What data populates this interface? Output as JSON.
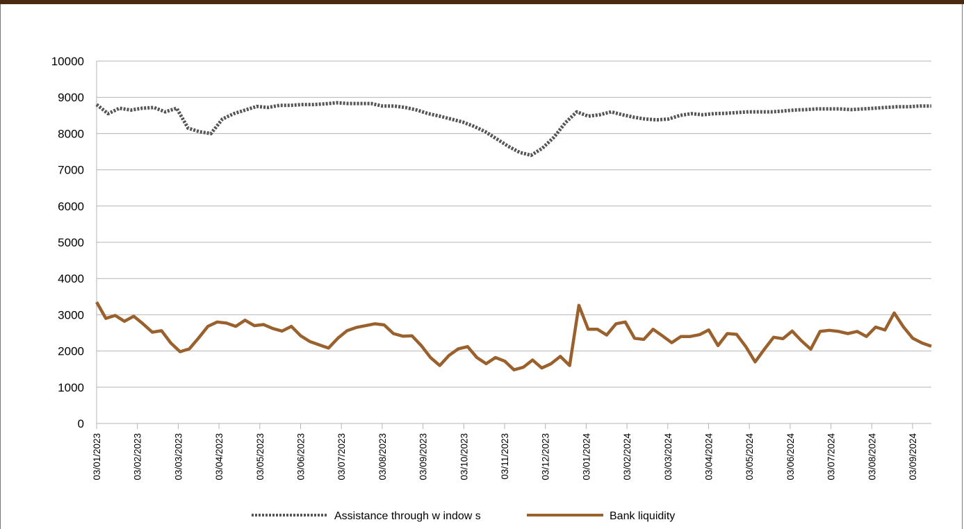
{
  "chart_data": {
    "type": "line",
    "title": "",
    "xlabel": "",
    "ylabel": "",
    "ylim": [
      0,
      10000
    ],
    "yticks": [
      0,
      1000,
      2000,
      3000,
      4000,
      5000,
      6000,
      7000,
      8000,
      9000,
      10000
    ],
    "x_tick_labels": [
      "03/01/2023",
      "03/02/2023",
      "03/03/2023",
      "03/04/2023",
      "03/05/2023",
      "03/06/2023",
      "03/07/2023",
      "03/08/2023",
      "03/09/2023",
      "03/10/2023",
      "03/11/2023",
      "03/12/2023",
      "03/01/2024",
      "03/02/2024",
      "03/03/2024",
      "03/04/2024",
      "03/05/2024",
      "03/06/2024",
      "03/07/2024",
      "03/08/2024",
      "03/09/2024"
    ],
    "x_period_weeks": 90,
    "grid": true,
    "legend_position": "bottom",
    "series": [
      {
        "name": "Assistance through w indow s",
        "style": "dotted",
        "color": "#555555",
        "values": [
          8800,
          8550,
          8700,
          8650,
          8700,
          8720,
          8600,
          8700,
          8150,
          8050,
          8000,
          8400,
          8550,
          8650,
          8750,
          8720,
          8780,
          8780,
          8800,
          8800,
          8820,
          8850,
          8830,
          8830,
          8830,
          8760,
          8760,
          8720,
          8650,
          8550,
          8480,
          8400,
          8320,
          8200,
          8050,
          7850,
          7650,
          7480,
          7400,
          7600,
          7900,
          8300,
          8600,
          8480,
          8520,
          8600,
          8520,
          8450,
          8400,
          8380,
          8400,
          8500,
          8550,
          8520,
          8550,
          8560,
          8580,
          8600,
          8600,
          8600,
          8620,
          8650,
          8660,
          8680,
          8680,
          8680,
          8660,
          8680,
          8700,
          8720,
          8740,
          8740,
          8760,
          8760
        ],
        "color_hex": "#555555"
      },
      {
        "name": "Bank liquidity",
        "style": "solid",
        "color": "#9a612d",
        "values": [
          3350,
          2900,
          2980,
          2820,
          2960,
          2750,
          2520,
          2560,
          2220,
          1980,
          2060,
          2360,
          2680,
          2800,
          2770,
          2680,
          2850,
          2700,
          2730,
          2620,
          2550,
          2680,
          2420,
          2260,
          2170,
          2080,
          2350,
          2560,
          2650,
          2700,
          2750,
          2720,
          2480,
          2410,
          2420,
          2150,
          1820,
          1600,
          1880,
          2060,
          2120,
          1820,
          1650,
          1820,
          1720,
          1480,
          1550,
          1750,
          1530,
          1650,
          1850,
          1600,
          3260,
          2600,
          2600,
          2440,
          2750,
          2800,
          2350,
          2320,
          2600,
          2420,
          2230,
          2400,
          2400,
          2450,
          2580,
          2150,
          2480,
          2460,
          2120,
          1700,
          2050,
          2380,
          2340,
          2550,
          2280,
          2050,
          2540,
          2570,
          2540,
          2480,
          2540,
          2400,
          2660,
          2580,
          3050,
          2660,
          2350,
          2220,
          2130
        ]
      }
    ]
  }
}
